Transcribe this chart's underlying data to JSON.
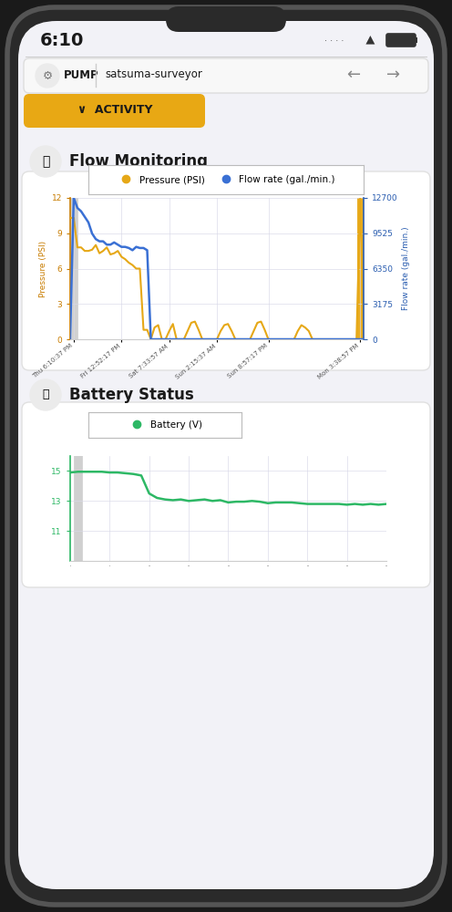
{
  "bg_color": "#f2f2f7",
  "status_time": "6:10",
  "header_label": "PUMP",
  "header_name": "satsuma-surveyor",
  "activity_btn_color": "#e8a814",
  "activity_btn_text": "ACTIVITY",
  "section1_title": "Flow Monitoring",
  "section2_title": "Battery Status",
  "chart1_legend": [
    "Pressure (PSI)",
    "Flow rate (gal./min.)"
  ],
  "chart1_legend_colors": [
    "#e6a817",
    "#3a70d4"
  ],
  "chart1_ylabel_left": "Pressure (PSI)",
  "chart1_ylabel_right": "Flow rate (gal./min.)",
  "chart1_yticks_left": [
    0,
    3,
    6,
    9,
    12
  ],
  "chart1_yticks_right": [
    0,
    3175,
    6350,
    9525,
    12700
  ],
  "chart1_xtick_labels": [
    "Thu 6:10:37 PM",
    "Fri 12:52:17 PM",
    "Sat 7:33:57 AM",
    "Sun 2:15:37 AM",
    "Sun 8:57:17 PM",
    "Mon 3:38:57 PM"
  ],
  "pressure_x": [
    0,
    1,
    2,
    3,
    4,
    5,
    6,
    7,
    8,
    9,
    10,
    11,
    12,
    13,
    14,
    15,
    16,
    17,
    18,
    19,
    20,
    21,
    22,
    23,
    24,
    25,
    26,
    27,
    28,
    29,
    30,
    31,
    32,
    33,
    34,
    35,
    36,
    37,
    38,
    39,
    40,
    41,
    42,
    43,
    44,
    45,
    46,
    47,
    48,
    49,
    50,
    51,
    52,
    53,
    54,
    55,
    56,
    57,
    58,
    59,
    60,
    61,
    62,
    63,
    64,
    65,
    66,
    67,
    68,
    69,
    70,
    71,
    72,
    73,
    74,
    75,
    76,
    77,
    78,
    79,
    80
  ],
  "pressure_y": [
    10.3,
    10.3,
    7.8,
    7.8,
    7.5,
    7.5,
    7.6,
    8.0,
    7.3,
    7.5,
    7.8,
    7.2,
    7.3,
    7.5,
    7.0,
    6.8,
    6.5,
    6.3,
    6.0,
    6.0,
    0.8,
    0.8,
    0.0,
    1.0,
    1.2,
    0.0,
    0.0,
    0.7,
    1.3,
    0.0,
    0.0,
    0.0,
    0.7,
    1.4,
    1.5,
    0.8,
    0.0,
    0.0,
    0.0,
    0.0,
    0.0,
    0.7,
    1.2,
    1.3,
    0.7,
    0.0,
    0.0,
    0.0,
    0.0,
    0.0,
    0.7,
    1.4,
    1.5,
    0.8,
    0.0,
    0.0,
    0.0,
    0.0,
    0.0,
    0.0,
    0.0,
    0.0,
    0.7,
    1.2,
    1.0,
    0.7,
    0.0,
    0.0,
    0.0,
    0.0,
    0.0,
    0.0,
    0.0,
    0.0,
    0.0,
    0.0,
    0.0,
    0.0,
    0.0,
    12.0,
    0.0
  ],
  "flowrate_x": [
    0,
    1,
    2,
    3,
    4,
    5,
    6,
    7,
    8,
    9,
    10,
    11,
    12,
    13,
    14,
    15,
    16,
    17,
    18,
    19,
    20,
    21,
    22,
    23,
    24,
    25,
    26,
    27,
    28,
    29,
    30,
    31,
    32,
    33,
    34,
    35,
    36,
    37,
    38,
    39,
    40,
    41,
    42,
    43,
    44,
    45,
    46,
    47,
    48,
    49,
    50,
    51,
    52,
    53,
    54,
    55,
    56,
    57,
    58,
    59,
    60,
    61,
    62,
    63,
    64,
    65,
    66,
    67,
    68,
    69,
    70,
    71,
    72,
    73,
    74,
    75,
    76,
    77,
    78,
    79,
    80
  ],
  "flowrate_y": [
    0,
    12700,
    11800,
    11500,
    11000,
    10500,
    9500,
    9000,
    8800,
    8800,
    8500,
    8500,
    8700,
    8500,
    8300,
    8300,
    8200,
    8000,
    8300,
    8200,
    8200,
    8000,
    0,
    0,
    0,
    0,
    0,
    0,
    0,
    0,
    0,
    0,
    0,
    0,
    0,
    0,
    0,
    0,
    0,
    0,
    0,
    0,
    0,
    0,
    0,
    0,
    0,
    0,
    0,
    0,
    0,
    0,
    0,
    0,
    0,
    0,
    0,
    0,
    0,
    0,
    0,
    0,
    0,
    0,
    0,
    0,
    0,
    0,
    0,
    0,
    0,
    0,
    0,
    0,
    0,
    0,
    0,
    0,
    0,
    0,
    0
  ],
  "battery_x": [
    0,
    1,
    2,
    3,
    4,
    5,
    6,
    7,
    8,
    9,
    10,
    11,
    12,
    13,
    14,
    15,
    16,
    17,
    18,
    19,
    20,
    21,
    22,
    23,
    24,
    25,
    26,
    27,
    28,
    29,
    30,
    31,
    32,
    33,
    34,
    35,
    36,
    37,
    38,
    39,
    40
  ],
  "battery_y": [
    14.9,
    14.95,
    14.95,
    14.95,
    14.95,
    14.9,
    14.9,
    14.85,
    14.8,
    14.7,
    13.5,
    13.2,
    13.1,
    13.05,
    13.1,
    13.0,
    13.05,
    13.1,
    13.0,
    13.05,
    12.9,
    12.95,
    12.95,
    13.0,
    12.95,
    12.85,
    12.9,
    12.9,
    12.9,
    12.85,
    12.8,
    12.8,
    12.8,
    12.8,
    12.8,
    12.75,
    12.8,
    12.75,
    12.8,
    12.75,
    12.8
  ],
  "battery_yticks": [
    11,
    13,
    15
  ],
  "battery_color": "#2db865",
  "chart_bg": "#ffffff",
  "grid_color": "#d8d8e8",
  "axis_color_left": "#c87c00",
  "axis_color_right": "#2a5db0",
  "vline_color": "#aaaaaa",
  "pressure_color": "#e6a817",
  "flowrate_color": "#3a70d4",
  "phone_outer": "#2a2a2a",
  "phone_screen_bg": "#f2f2f7",
  "card_bg": "#ffffff",
  "card_border": "#e0e0e0",
  "section_icon_bg": "#ebebeb",
  "text_dark": "#1a1a1a",
  "text_gray": "#666666"
}
